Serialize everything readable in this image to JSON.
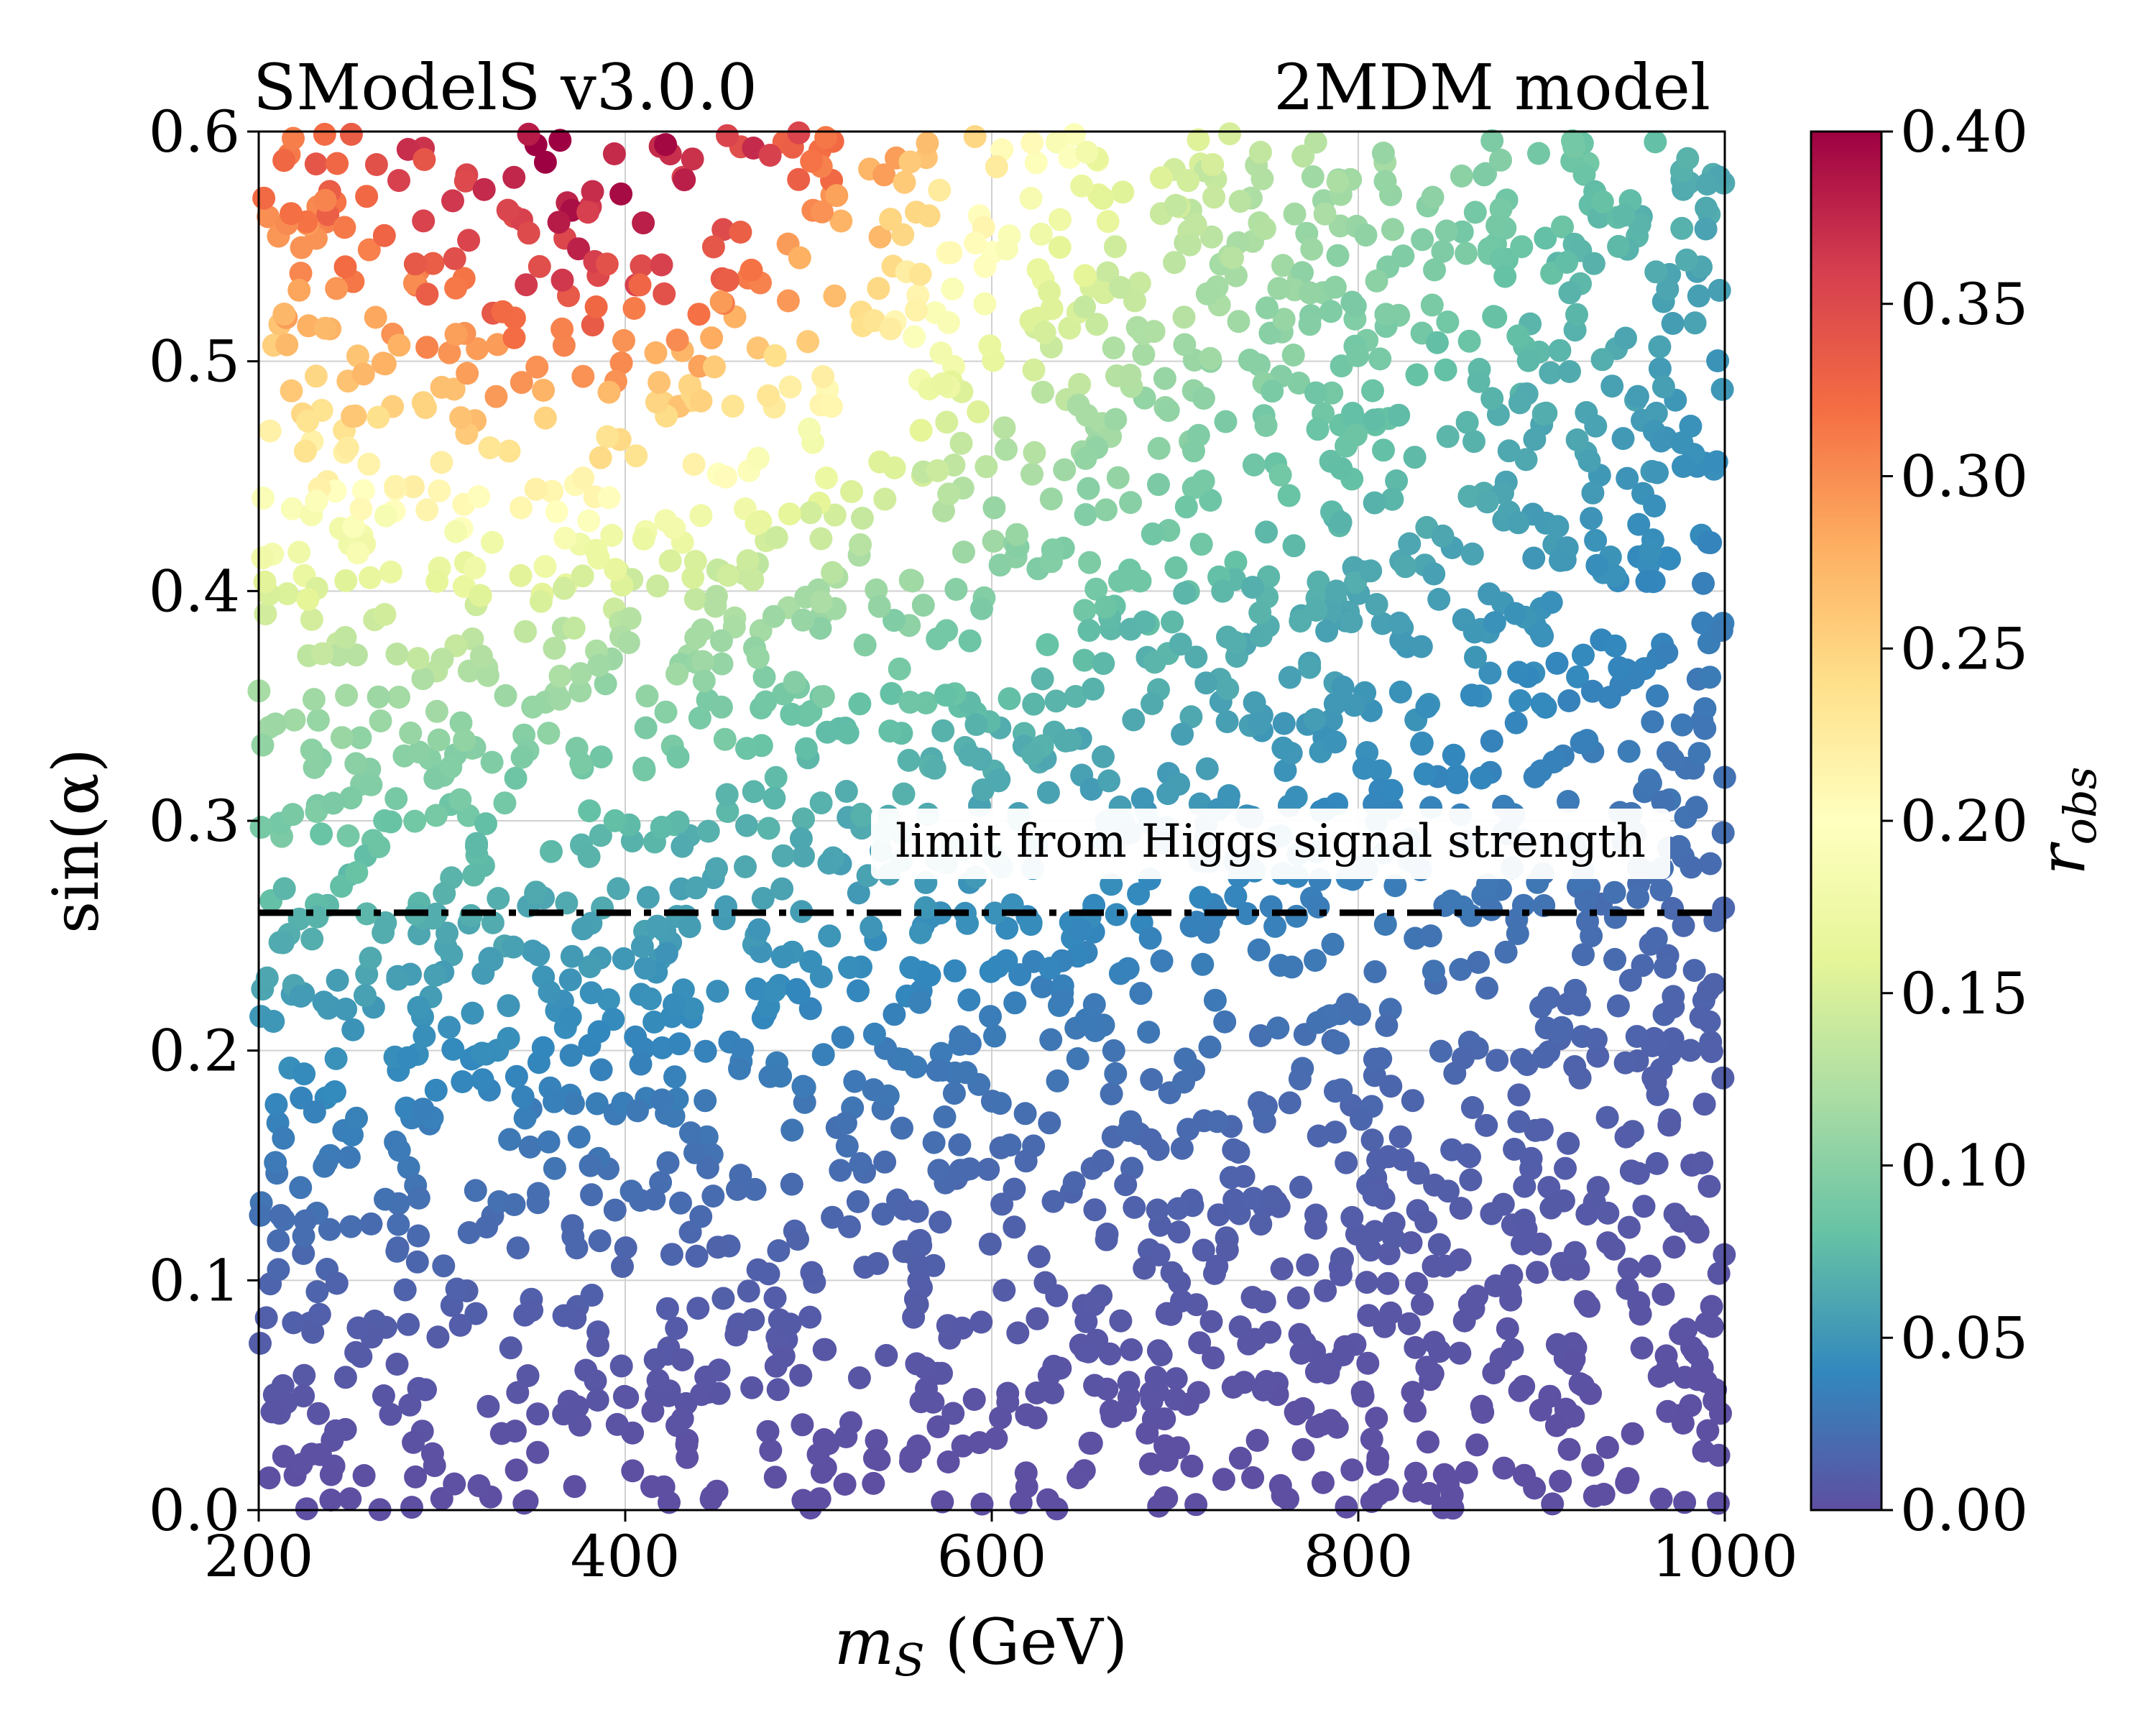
{
  "chart_data": {
    "type": "scatter",
    "title_left": "SModelS v3.0.0",
    "title_right": "2MDM model",
    "xlabel": "m_S (GeV)",
    "xlabel_main": "m",
    "xlabel_sub": "S",
    "xlabel_unit": " (GeV)",
    "ylabel": "sin(α)",
    "xlim": [
      200,
      1000
    ],
    "ylim": [
      0,
      0.6
    ],
    "xticks": [
      "200",
      "400",
      "600",
      "800",
      "1000"
    ],
    "yticks": [
      "0.0",
      "0.1",
      "0.2",
      "0.3",
      "0.4",
      "0.5",
      "0.6"
    ],
    "grid": true,
    "colorbar": {
      "label": "r_obs",
      "label_main": "r",
      "label_sub": "obs",
      "range": [
        0,
        0.4
      ],
      "ticks": [
        "0.00",
        "0.05",
        "0.10",
        "0.15",
        "0.20",
        "0.25",
        "0.30",
        "0.35",
        "0.40"
      ],
      "colormap": "Spectral_r",
      "colors": [
        "#5e4fa2",
        "#3288bd",
        "#66c2a5",
        "#abdda4",
        "#e6f598",
        "#ffffbf",
        "#fee08b",
        "#fdae61",
        "#f46d43",
        "#d53e4f",
        "#9e0142"
      ]
    },
    "reference_line": {
      "y": 0.26,
      "style": "dash-dot",
      "color": "#000000",
      "label": "limit from Higgs signal strength"
    },
    "points": {
      "count": 2600,
      "x_range": [
        200,
        1000
      ],
      "y_range": [
        0,
        0.6
      ],
      "color_trend": [
        {
          "region": "sin(α) ≥ 0.55, m_S 330–500 GeV",
          "r_obs": 0.38
        },
        {
          "region": "sin(α) ≈ 0.5, m_S 200–450 GeV",
          "r_obs": 0.28
        },
        {
          "region": "sin(α) ≈ 0.45, m_S 200–650 GeV",
          "r_obs": 0.19
        },
        {
          "region": "sin(α) ≈ 0.35, m_S 200–600 GeV",
          "r_obs": 0.12
        },
        {
          "region": "sin(α) ≈ 0.4, m_S 900–1000 GeV",
          "r_obs": 0.03
        },
        {
          "region": "sin(α) ≈ 0.2",
          "r_obs": 0.04
        },
        {
          "region": "sin(α) < 0.15",
          "r_obs": 0.005
        }
      ]
    }
  }
}
